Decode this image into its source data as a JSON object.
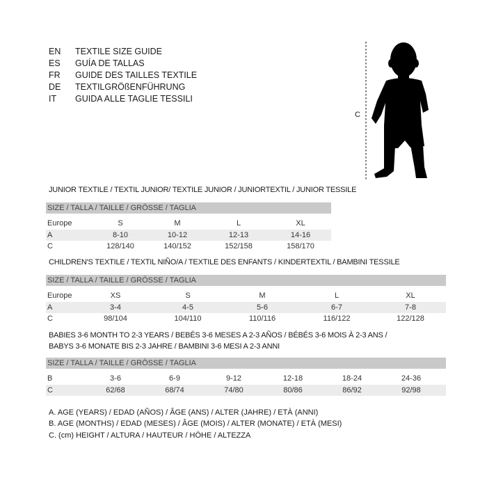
{
  "languages": [
    {
      "code": "EN",
      "text": "TEXTILE SIZE GUIDE"
    },
    {
      "code": "ES",
      "text": "GUÍA DE TALLAS"
    },
    {
      "code": "FR",
      "text": "GUIDE DES TAILLES TEXTILE"
    },
    {
      "code": "DE",
      "text": "TEXTILGRÖßENFÜHRUNG"
    },
    {
      "code": "IT",
      "text": "GUIDA ALLE TAGLIE TESSILI"
    }
  ],
  "figure": {
    "measure_label": "C",
    "icon": "child-silhouette-icon"
  },
  "junior": {
    "title": "JUNIOR TEXTILE / TEXTIL JUNIOR/ TEXTILE JUNIOR / JUNIORTEXTIL / JUNIOR TESSILE",
    "header": "SIZE / TALLA / TAILLE / GRÖSSE / TAGLIA",
    "rows": [
      {
        "label": "Europe",
        "values": [
          "S",
          "M",
          "L",
          "XL"
        ]
      },
      {
        "label": "A",
        "values": [
          "8-10",
          "10-12",
          "12-13",
          "14-16"
        ]
      },
      {
        "label": "C",
        "values": [
          "128/140",
          "140/152",
          "152/158",
          "158/170"
        ]
      }
    ]
  },
  "children": {
    "title": "CHILDREN'S TEXTILE / TEXTIL NIÑO/A / TEXTILE DES ENFANTS / KINDERTEXTIL / BAMBINI TESSILE",
    "header": "SIZE / TALLA / TAILLE / GRÖSSE / TAGLIA",
    "rows": [
      {
        "label": "Europe",
        "values": [
          "XS",
          "S",
          "M",
          "L",
          "XL"
        ]
      },
      {
        "label": "A",
        "values": [
          "3-4",
          "4-5",
          "5-6",
          "6-7",
          "7-8"
        ]
      },
      {
        "label": "C",
        "values": [
          "98/104",
          "104/110",
          "110/116",
          "116/122",
          "122/128"
        ]
      }
    ]
  },
  "babies": {
    "title_line1": "BABIES 3-6 MONTH TO 2-3 YEARS / BEBÉS 3-6 MESES A 2-3 AÑOS / BÉBÉS 3-6 MOIS À 2-3 ANS /",
    "title_line2": "BABYS 3-6 MONATE BIS 2-3 JAHRE / BAMBINI 3-6 MESI A 2-3 ANNI",
    "header": "SIZE / TALLA / TAILLE / GRÖSSE / TAGLIA",
    "rows": [
      {
        "label": "B",
        "values": [
          "3-6",
          "6-9",
          "9-12",
          "12-18",
          "18-24",
          "24-36"
        ]
      },
      {
        "label": "C",
        "values": [
          "62/68",
          "68/74",
          "74/80",
          "80/86",
          "86/92",
          "92/98"
        ]
      }
    ]
  },
  "legend": [
    "A. AGE (YEARS) / EDAD (AÑOS) / ÂGE (ANS) / ALTER (JAHRE) / ETÀ (ANNI)",
    "B. AGE (MONTHS) / EDAD (MESES) / ÂGE (MOIS) / ALTER (MONATE) / ETÀ (MESI)",
    "C. (cm) HEIGHT / ALTURA / HAUTEUR / HÖHE / ALTEZZA"
  ]
}
